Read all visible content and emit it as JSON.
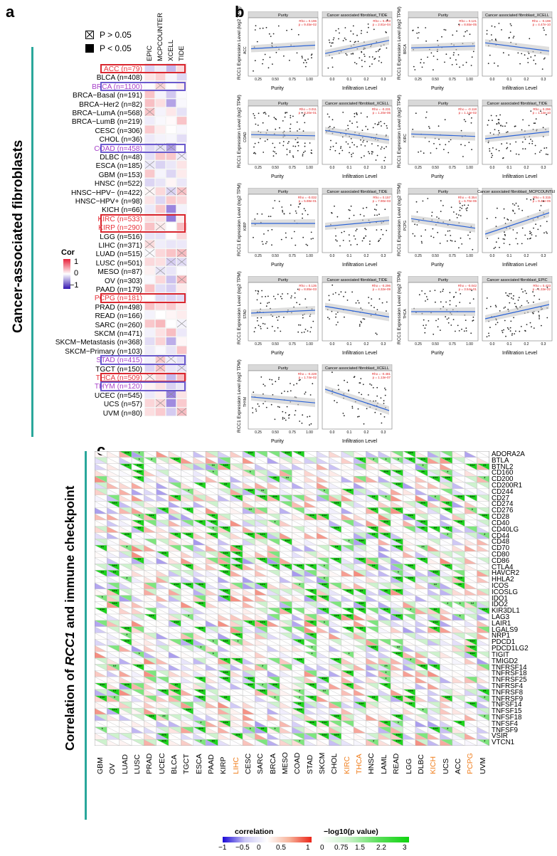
{
  "panels": {
    "a": "a",
    "b": "b",
    "c": "c"
  },
  "panel_a": {
    "title": "Cancer-associated fibroblasts",
    "legend": {
      "ns": "P > 0.05",
      "sig": "P < 0.05"
    },
    "methods": [
      "EPIC",
      "MCPCOUNTER",
      "XCELL",
      "TIDE"
    ],
    "cor_legend": {
      "title": "Cor",
      "ticks": [
        "1",
        "0",
        "−1"
      ]
    },
    "cancers": [
      "ACC (n=79)",
      "BLCA (n=408)",
      "BRCA (n=1100)",
      "BRCA−Basal (n=191)",
      "BRCA−Her2 (n=82)",
      "BRCA−LumA (n=568)",
      "BRCA−LumB (n=219)",
      "CESC (n=306)",
      "CHOL (n=36)",
      "COAD (n=458)",
      "DLBC (n=48)",
      "ESCA (n=185)",
      "GBM (n=153)",
      "HNSC (n=522)",
      "HNSC−HPV− (n=422)",
      "HNSC−HPV+ (n=98)",
      "KICH (n=66)",
      "KIRC (n=533)",
      "KIRP (n=290)",
      "LGG (n=516)",
      "LIHC (n=371)",
      "LUAD (n=515)",
      "LUSC (n=501)",
      "MESO (n=87)",
      "OV (n=303)",
      "PAAD (n=179)",
      "PCPG (n=181)",
      "PRAD (n=498)",
      "READ (n=166)",
      "SARC (n=260)",
      "SKCM (n=471)",
      "SKCM−Metastasis (n=368)",
      "SKCM−Primary (n=103)",
      "STAD (n=415)",
      "TGCT (n=150)",
      "THCA (n=509)",
      "THYM (n=120)",
      "UCEC (n=545)",
      "UCS (n=57)",
      "UVM (n=80)"
    ],
    "red_labels": [
      0,
      17,
      18,
      26,
      35
    ],
    "purple_labels": [
      2,
      9,
      33,
      36
    ],
    "colors": {
      "red": "#e8343c",
      "purple": "#a63fc9",
      "teal": "#2aa79b",
      "frame_red": "#d9262e",
      "frame_purple": "#6a5acd"
    }
  },
  "panel_b": {
    "y_label": "RCC1 Expression Level (log2 TPM)",
    "x_purity": "Purity",
    "x_infil": "Infiltration Level",
    "plots": [
      {
        "cancer": "ACC",
        "right": "Cancer associated fibroblast_TIDE",
        "rho_l": "Rho = 0.196",
        "p_l": "p = 9.45e-02",
        "rho_r": "Rho = 0.403",
        "p_r": "p = 2.81e-04",
        "slope_l": 0.15,
        "slope_r": 0.55
      },
      {
        "cancer": "BRCA",
        "right": "Cancer associated fibroblast_XCELL",
        "rho_l": "Rho = 0.121",
        "p_l": "p = 8.65e-05",
        "rho_r": "Rho = -0.198",
        "p_r": "p = 4.47e-10",
        "slope_l": 0.08,
        "slope_r": -0.35
      },
      {
        "cancer": "COAD",
        "right": "Cancer associated fibroblast_XCELL",
        "rho_l": "Rho = 0.011",
        "p_l": "p = 8.20e-01",
        "rho_r": "Rho = -0.231",
        "p_r": "p = 1.20e-06",
        "slope_l": -0.05,
        "slope_r": -0.4
      },
      {
        "cancer": "KIRC",
        "right": "Cancer associated fibroblast_TIDE",
        "rho_l": "Rho = -0.118",
        "p_l": "p = 1.14e-02",
        "rho_r": "Rho = 0.296",
        "p_r": "p = 1.13e-10",
        "slope_l": -0.1,
        "slope_r": 0.3
      },
      {
        "cancer": "KIRP",
        "right": "Cancer associated fibroblast_TIDE",
        "rho_l": "Rho = -0.032",
        "p_l": "p = 5.88e-01",
        "rho_r": "Rho = 0.157",
        "p_r": "p = 7.90e-03",
        "slope_l": 0.0,
        "slope_r": 0.25
      },
      {
        "cancer": "PCPG",
        "right": "Cancer associated fibroblast_MCPCOUNTER",
        "rho_l": "Rho = -0.354",
        "p_l": "p = 6.70e-06",
        "rho_r": "Rho = 0.315",
        "p_r": "p = 9.46e-05",
        "slope_l": -0.4,
        "slope_r": 0.9
      },
      {
        "cancer": "STAD",
        "right": "Cancer associated fibroblast_TIDE",
        "rho_l": "Rho = 0.135",
        "p_l": "p = 8.85e-03",
        "rho_r": "Rho = -0.296",
        "p_r": "p = 4.32e-09",
        "slope_l": 0.12,
        "slope_r": -0.45
      },
      {
        "cancer": "THCA",
        "right": "Cancer associated fibroblast_EPIC",
        "rho_l": "Rho = -0.042",
        "p_l": "p = 3.54e-01",
        "rho_r": "Rho = 0.423",
        "p_r": "p = 1.33e-22",
        "slope_l": 0.0,
        "slope_r": 0.6
      },
      {
        "cancer": "THYM",
        "right": "Cancer associated fibroblast_XCELL",
        "rho_l": "Rho = -0.228",
        "p_l": "p = 1.74e-02",
        "rho_r": "Rho = -0.481",
        "p_r": "p = 1.13e-07",
        "slope_l": -0.25,
        "slope_r": -0.9
      }
    ],
    "x_ticks_purity": [
      "0.25",
      "0.50",
      "0.75",
      "1.00"
    ],
    "x_ticks_infil": [
      "0.0",
      "0.1",
      "0.2",
      "0.3"
    ]
  },
  "panel_c": {
    "title_pre": "Correlation of ",
    "title_gene": "RCC1",
    "title_post": " and immune checkpoint",
    "cancers": [
      "GBM",
      "OV",
      "LUAD",
      "LUSC",
      "PRAD",
      "UCEC",
      "BLCA",
      "TGCT",
      "ESCA",
      "PAAD",
      "KIRP",
      "LIHC",
      "CESC",
      "SARC",
      "BRCA",
      "MESO",
      "COAD",
      "STAD",
      "SKCM",
      "CHOL",
      "KIRC",
      "THCA",
      "HNSC",
      "LAML",
      "READ",
      "LGG",
      "DLBC",
      "KICH",
      "UCS",
      "ACC",
      "PCPG",
      "UVM"
    ],
    "orange_cancers": [
      "LIHC",
      "KIRC",
      "THCA",
      "KICH",
      "PCPG"
    ],
    "genes": [
      "ADORA2A",
      "BTLA",
      "BTNL2",
      "CD160",
      "CD200",
      "CD200R1",
      "CD244",
      "CD27",
      "CD274",
      "CD276",
      "CD28",
      "CD40",
      "CD40LG",
      "CD44",
      "CD48",
      "CD70",
      "CD80",
      "CD86",
      "CTLA4",
      "HAVCR2",
      "HHLA2",
      "ICOS",
      "ICOSLG",
      "IDO1",
      "IDO2",
      "KIR3DL1",
      "LAG3",
      "LAIR1",
      "LGALS9",
      "NRP1",
      "PDCD1",
      "PDCD1LG2",
      "TIGIT",
      "TMIGD2",
      "TNFRSF14",
      "TNFRSF18",
      "TNFRSF25",
      "TNFRSF4",
      "TNFRSF8",
      "TNFRSF9",
      "TNFSF14",
      "TNFSF15",
      "TNFSF18",
      "TNFSF4",
      "TNFSF9",
      "VSIR",
      "VTCN1"
    ],
    "legend_corr": {
      "title": "correlation",
      "ticks": [
        "−1",
        "−0.5",
        "0",
        "0.5",
        "1"
      ]
    },
    "legend_p": {
      "title": "−log10(p value)",
      "ticks": [
        "0",
        "0.75",
        "1.5",
        "2.2",
        "3"
      ]
    },
    "orange": "#f07f1f"
  }
}
